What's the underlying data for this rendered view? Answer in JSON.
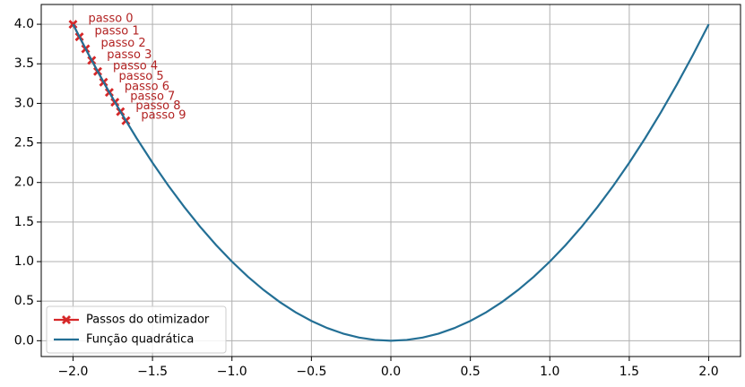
{
  "chart_data": {
    "type": "line",
    "series": [
      {
        "name": "Passos do otimizador",
        "color": "#d62728",
        "marker": "X",
        "x": [
          -2,
          -1.96,
          -1.9208,
          -1.8824,
          -1.8447,
          -1.8078,
          -1.7717,
          -1.7363,
          -1.7015,
          -1.6675
        ],
        "values": [
          4,
          3.8416,
          3.6895,
          3.5434,
          3.403,
          3.2683,
          3.1389,
          3.0147,
          2.8953,
          2.7807
        ],
        "point_labels": [
          "passo 0",
          "passo 1",
          "passo 2",
          "passo 3",
          "passo 4",
          "passo 5",
          "passo 6",
          "passo 7",
          "passo 8",
          "passo 9"
        ]
      },
      {
        "name": "Função quadrática",
        "color": "#236f95",
        "x": [
          -2,
          -1.9,
          -1.8,
          -1.7,
          -1.6,
          -1.5,
          -1.4,
          -1.3,
          -1.2,
          -1.1,
          -1,
          -0.9,
          -0.8,
          -0.7,
          -0.6,
          -0.5,
          -0.4,
          -0.3,
          -0.2,
          -0.1,
          0,
          0.1,
          0.2,
          0.3,
          0.4,
          0.5,
          0.6,
          0.7,
          0.8,
          0.9,
          1,
          1.1,
          1.2,
          1.3,
          1.4,
          1.5,
          1.6,
          1.7,
          1.8,
          1.9,
          2
        ],
        "values": [
          4,
          3.61,
          3.24,
          2.89,
          2.56,
          2.25,
          1.96,
          1.69,
          1.44,
          1.21,
          1,
          0.81,
          0.64,
          0.49,
          0.36,
          0.25,
          0.16,
          0.09,
          0.04,
          0.01,
          0,
          0.01,
          0.04,
          0.09,
          0.16,
          0.25,
          0.36,
          0.49,
          0.64,
          0.81,
          1,
          1.21,
          1.44,
          1.69,
          1.96,
          2.25,
          2.56,
          2.89,
          3.24,
          3.61,
          4
        ]
      }
    ],
    "xlim": [
      -2.2,
      2.2
    ],
    "ylim": [
      -0.2,
      4.25
    ],
    "xticks": [
      {
        "value": -2,
        "label": "−2.0"
      },
      {
        "value": -1.5,
        "label": "−1.5"
      },
      {
        "value": -1,
        "label": "−1.0"
      },
      {
        "value": -0.5,
        "label": "−0.5"
      },
      {
        "value": 0,
        "label": "0.0"
      },
      {
        "value": 0.5,
        "label": "0.5"
      },
      {
        "value": 1,
        "label": "1.0"
      },
      {
        "value": 1.5,
        "label": "1.5"
      },
      {
        "value": 2,
        "label": "2.0"
      }
    ],
    "yticks": [
      {
        "value": 0,
        "label": "0.0"
      },
      {
        "value": 0.5,
        "label": "0.5"
      },
      {
        "value": 1,
        "label": "1.0"
      },
      {
        "value": 1.5,
        "label": "1.5"
      },
      {
        "value": 2,
        "label": "2.0"
      },
      {
        "value": 2.5,
        "label": "2.5"
      },
      {
        "value": 3,
        "label": "3.0"
      },
      {
        "value": 3.5,
        "label": "3.5"
      },
      {
        "value": 4,
        "label": "4.0"
      }
    ],
    "grid": true,
    "legend": "lower left"
  }
}
